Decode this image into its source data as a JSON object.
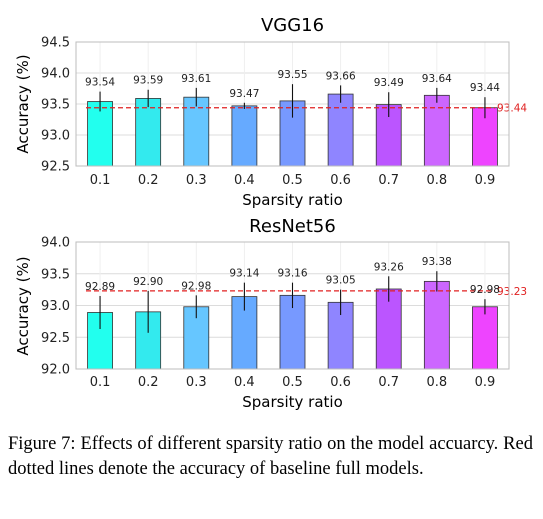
{
  "caption": "Figure 7: Effects of different sparsity ratio on the model accuarcy. Red dotted lines denote the accuracy of baseline full models.",
  "chart_data": [
    {
      "type": "bar",
      "title": "VGG16",
      "xlabel": "Sparsity ratio",
      "ylabel": "Accuracy (%)",
      "categories": [
        "0.1",
        "0.2",
        "0.3",
        "0.4",
        "0.5",
        "0.6",
        "0.7",
        "0.8",
        "0.9"
      ],
      "values": [
        93.54,
        93.59,
        93.61,
        93.47,
        93.55,
        93.66,
        93.49,
        93.64,
        93.44
      ],
      "value_labels": [
        "93.54",
        "93.59",
        "93.61",
        "93.47",
        "93.55",
        "93.66",
        "93.49",
        "93.64",
        "93.44"
      ],
      "error": [
        0.16,
        0.14,
        0.15,
        0.05,
        0.27,
        0.14,
        0.2,
        0.12,
        0.17
      ],
      "baseline": 93.44,
      "baseline_label": "93.44",
      "ylim": [
        92.5,
        94.5
      ],
      "yticks": [
        92.5,
        93.0,
        93.5,
        94.0,
        94.5
      ],
      "ytick_labels": [
        "92.5",
        "93.0",
        "93.5",
        "94.0",
        "94.5"
      ],
      "grid": "horizontal",
      "colors": [
        "#22ffee",
        "#33eaee",
        "#66c6ff",
        "#66aaff",
        "#7799ff",
        "#8f85ff",
        "#bb55ff",
        "#cc66ff",
        "#ee44ff"
      ],
      "baseline_color": "#e02020"
    },
    {
      "type": "bar",
      "title": "ResNet56",
      "xlabel": "Sparsity ratio",
      "ylabel": "Accuracy (%)",
      "categories": [
        "0.1",
        "0.2",
        "0.3",
        "0.4",
        "0.5",
        "0.6",
        "0.7",
        "0.8",
        "0.9"
      ],
      "values": [
        92.89,
        92.9,
        92.98,
        93.14,
        93.16,
        93.05,
        93.26,
        93.38,
        92.98
      ],
      "value_labels": [
        "92.89",
        "92.90",
        "92.98",
        "93.14",
        "93.16",
        "93.05",
        "93.26",
        "93.38",
        "92.98"
      ],
      "error": [
        0.26,
        0.33,
        0.18,
        0.22,
        0.2,
        0.2,
        0.2,
        0.16,
        0.12
      ],
      "baseline": 93.23,
      "baseline_label": "93.23",
      "ylim": [
        92.0,
        94.0
      ],
      "yticks": [
        92.0,
        92.5,
        93.0,
        93.5,
        94.0
      ],
      "ytick_labels": [
        "92.0",
        "92.5",
        "93.0",
        "93.5",
        "94.0"
      ],
      "grid": "horizontal",
      "colors": [
        "#22ffee",
        "#33eaee",
        "#66c6ff",
        "#66aaff",
        "#7799ff",
        "#8f85ff",
        "#bb55ff",
        "#cc66ff",
        "#ee44ff"
      ],
      "baseline_color": "#e02020"
    }
  ]
}
